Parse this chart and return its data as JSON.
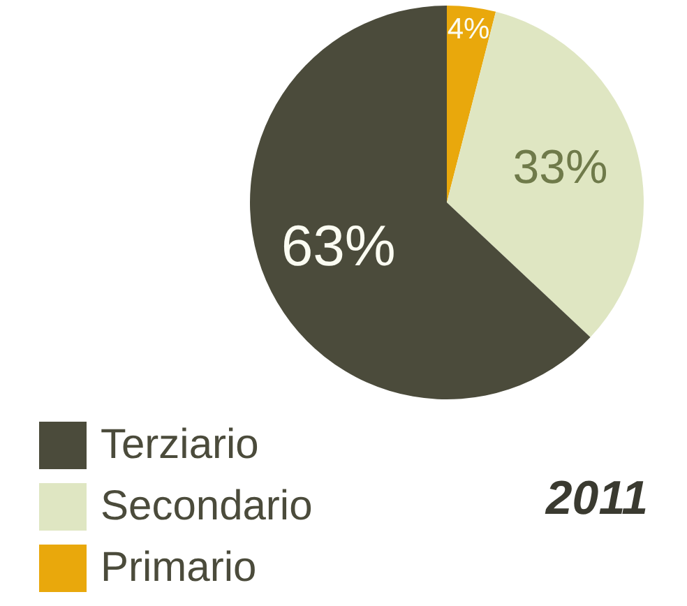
{
  "chart_data": {
    "type": "pie",
    "title": "2011",
    "categories": [
      "Primario",
      "Secondario",
      "Terziario"
    ],
    "values": [
      4,
      33,
      63
    ],
    "colors": [
      "#e9a80c",
      "#dfe6c2",
      "#4b4b3b"
    ],
    "value_labels": [
      "4%",
      "33%",
      "63%"
    ],
    "legend": "bottom left"
  }
}
